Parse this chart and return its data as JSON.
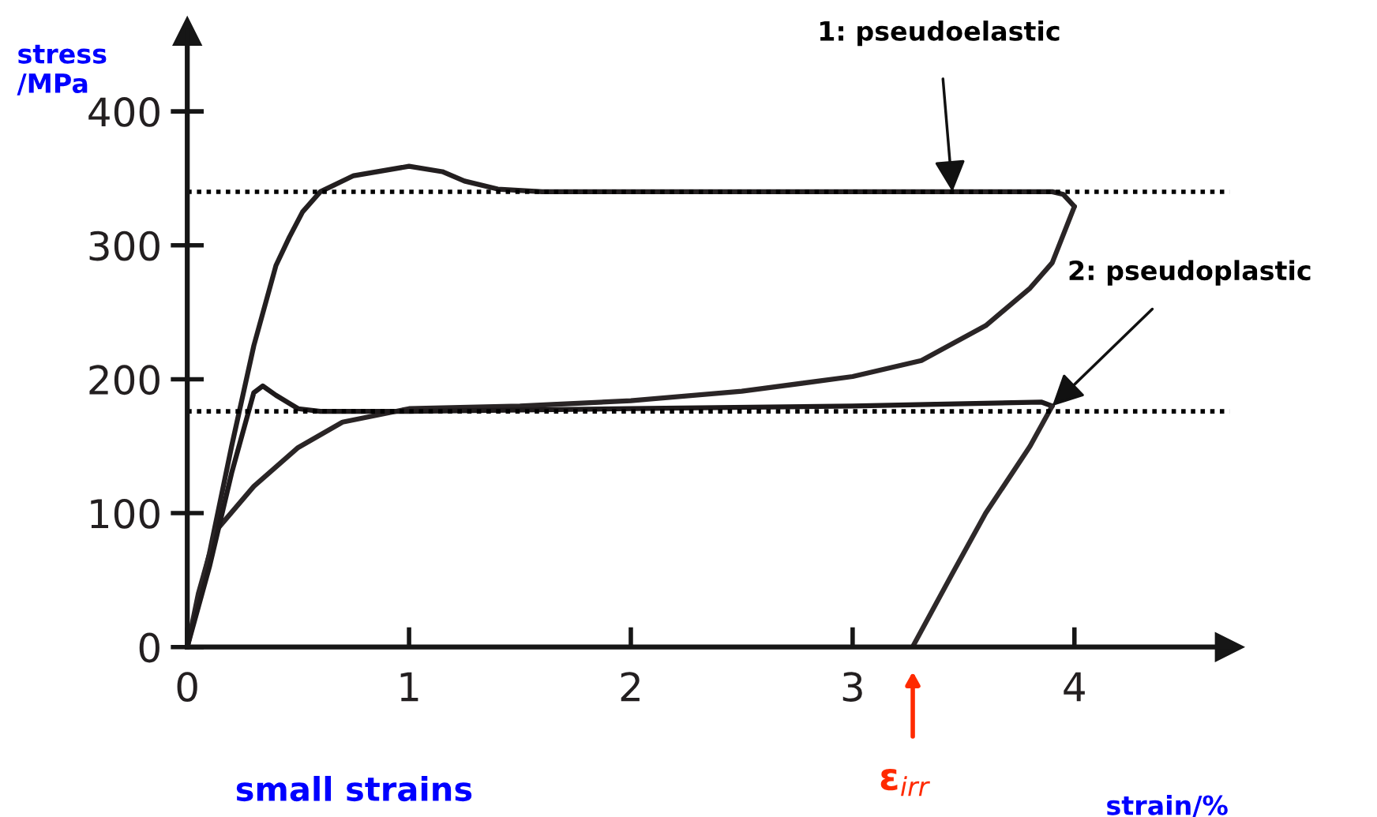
{
  "chart_data": {
    "type": "line",
    "xlabel": "strain/%",
    "ylabel": "stress\n/MPa",
    "series": [
      {
        "color": "#231f20",
        "x": [
          0,
          0.1,
          0.2,
          0.3,
          0.4,
          0.46,
          0.52,
          0.6,
          0.75,
          1.0,
          1.15,
          1.25,
          1.4,
          1.6,
          2.0,
          3.0,
          3.9,
          3.95,
          4.0
        ],
        "values": [
          0,
          70,
          150,
          225,
          285,
          306,
          325,
          340,
          352,
          359,
          355,
          348,
          342,
          340,
          340,
          340,
          340,
          338,
          329
        ]
      },
      {
        "color": "#2a2526",
        "x": [
          4.0,
          3.9,
          3.8,
          3.6,
          3.31,
          3.0,
          2.5,
          2.0,
          1.5,
          1.0,
          0.7,
          0.5,
          0.3,
          0.13,
          0.05,
          0
        ],
        "values": [
          329,
          287,
          268,
          240,
          214,
          202,
          191,
          184,
          180,
          178,
          168,
          149,
          120,
          87,
          40,
          0
        ]
      },
      {
        "color": "#1e1a1b",
        "x": [
          0,
          0.1,
          0.2,
          0.3,
          0.34,
          0.4,
          0.5,
          0.6,
          0.8,
          1.0,
          2.0,
          3.0,
          3.85,
          3.9
        ],
        "values": [
          0,
          60,
          130,
          190,
          195,
          188,
          178,
          176,
          176,
          176,
          178,
          180,
          183,
          180
        ]
      },
      {
        "color": "#2e292a",
        "x": [
          3.9,
          3.8,
          3.6,
          3.45,
          3.27
        ],
        "values": [
          180,
          150,
          100,
          55,
          0
        ]
      }
    ],
    "xlim": [
      0,
      4.7
    ],
    "ylim": [
      0,
      460
    ],
    "xticks": [
      0,
      1,
      2,
      3,
      4
    ],
    "yticks": [
      0,
      100,
      200,
      300,
      400
    ],
    "grid": false,
    "legend": false,
    "line_style": "solid",
    "marker": "none",
    "ref_lines": [
      {
        "axis": "y",
        "value": 340,
        "color": "#000000",
        "line_style": "dotted"
      },
      {
        "axis": "y",
        "value": 176,
        "color": "#000000",
        "line_style": "dotted"
      }
    ],
    "annotations": [
      {
        "text": "1: pseudoelastic",
        "x": 3.45,
        "y": 340
      },
      {
        "text": "2: pseudoplastic",
        "x": 3.9,
        "y": 180
      },
      "ε$_{irr}$",
      "small strains"
    ]
  }
}
